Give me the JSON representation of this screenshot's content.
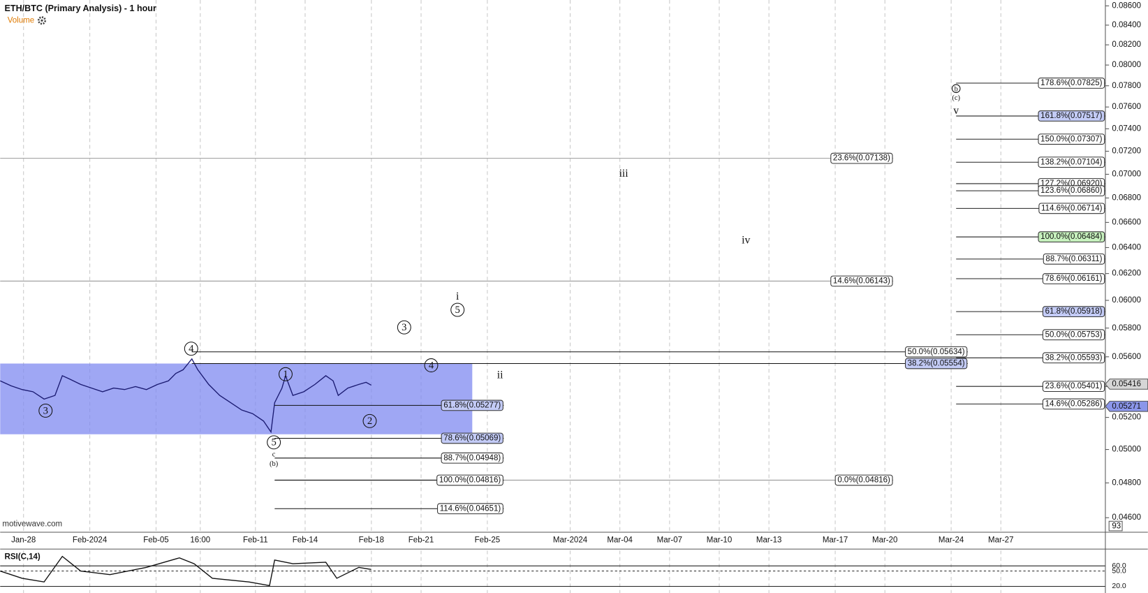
{
  "chart_data": [
    {
      "type": "line",
      "title": "ETH/BTC (Primary Analysis) - 1 hour",
      "subtitle": "Volume",
      "watermark": "motivewave.com",
      "log_scale": true,
      "grid": true,
      "xlim": [
        -1.41,
        65.31
      ],
      "xticks": [
        {
          "value": 0,
          "label": "Jan-28"
        },
        {
          "value": 4,
          "label": "Feb-2024"
        },
        {
          "value": 8,
          "label": "Feb-05"
        },
        {
          "value": 10.67,
          "label": "16:00"
        },
        {
          "value": 14,
          "label": "Feb-11"
        },
        {
          "value": 17,
          "label": "Feb-14"
        },
        {
          "value": 21,
          "label": "Feb-18"
        },
        {
          "value": 24,
          "label": "Feb-21"
        },
        {
          "value": 28,
          "label": "Feb-25"
        },
        {
          "value": 33,
          "label": "Mar-2024"
        },
        {
          "value": 36,
          "label": "Mar-04"
        },
        {
          "value": 39,
          "label": "Mar-07"
        },
        {
          "value": 42,
          "label": "Mar-10"
        },
        {
          "value": 45,
          "label": "Mar-13"
        },
        {
          "value": 49,
          "label": "Mar-17"
        },
        {
          "value": 52,
          "label": "Mar-20"
        },
        {
          "value": 56,
          "label": "Mar-24"
        },
        {
          "value": 59,
          "label": "Mar-27"
        }
      ],
      "ylim": [
        0.04519,
        0.08662
      ],
      "yticks": [
        {
          "value": 0.046,
          "label": "0.04600"
        },
        {
          "value": 0.048,
          "label": "0.04800"
        },
        {
          "value": 0.05,
          "label": "0.05000"
        },
        {
          "value": 0.052,
          "label": "0.05200"
        },
        {
          "value": 0.054,
          "label": "0.05400"
        },
        {
          "value": 0.056,
          "label": "0.05600"
        },
        {
          "value": 0.058,
          "label": "0.05800"
        },
        {
          "value": 0.06,
          "label": "0.06000"
        },
        {
          "value": 0.062,
          "label": "0.06200"
        },
        {
          "value": 0.064,
          "label": "0.06400"
        },
        {
          "value": 0.066,
          "label": "0.06600"
        },
        {
          "value": 0.068,
          "label": "0.06800"
        },
        {
          "value": 0.07,
          "label": "0.07000"
        },
        {
          "value": 0.072,
          "label": "0.07200"
        },
        {
          "value": 0.074,
          "label": "0.07400"
        },
        {
          "value": 0.076,
          "label": "0.07600"
        },
        {
          "value": 0.078,
          "label": "0.07800"
        },
        {
          "value": 0.08,
          "label": "0.08000"
        },
        {
          "value": 0.082,
          "label": "0.08200"
        },
        {
          "value": 0.084,
          "label": "0.08400"
        },
        {
          "value": 0.086,
          "label": "0.08600"
        }
      ],
      "color": "#1b1b72",
      "x": [
        -1.41,
        -0.75,
        -0.09,
        0.57,
        1.24,
        1.9,
        2.34,
        2.78,
        3.45,
        4.11,
        4.77,
        5.44,
        6.1,
        6.76,
        7.42,
        8.09,
        8.75,
        9.19,
        9.63,
        10.16,
        10.52,
        11.18,
        11.84,
        12.51,
        13.17,
        13.83,
        14.49,
        14.94,
        15.16,
        15.6,
        15.82,
        16.26,
        16.92,
        17.59,
        18.25,
        18.69,
        19.0,
        19.58,
        20.24,
        20.68,
        20.99
      ],
      "values": [
        0.05438,
        0.05405,
        0.0538,
        0.05366,
        0.05318,
        0.05342,
        0.05472,
        0.0545,
        0.05414,
        0.0539,
        0.05366,
        0.0539,
        0.0538,
        0.054,
        0.0538,
        0.05414,
        0.05438,
        0.05487,
        0.05512,
        0.05586,
        0.05512,
        0.05414,
        0.05342,
        0.05294,
        0.05247,
        0.05224,
        0.05177,
        0.05108,
        0.05294,
        0.0539,
        0.05472,
        0.05342,
        0.05366,
        0.05414,
        0.05472,
        0.05438,
        0.05342,
        0.0539,
        0.05414,
        0.05428,
        0.05409
      ],
      "box": {
        "x": [
          -1.41,
          27.09
        ],
        "y": [
          0.05094,
          0.05554
        ],
        "color": "#7f89f0"
      },
      "fib_groups": [
        {
          "from": 56.3,
          "to": 65.3,
          "color": "#222",
          "levels": [
            {
              "value": 0.07825,
              "label": "178.6%(0.07825)"
            },
            {
              "value": 0.07517,
              "label": "161.8%(0.07517)",
              "bg": "#c3cbf6"
            },
            {
              "value": 0.07307,
              "label": "150.0%(0.07307)"
            },
            {
              "value": 0.07104,
              "label": "138.2%(0.07104)"
            },
            {
              "value": 0.0692,
              "label": "127.2%(0.06920)"
            },
            {
              "value": 0.0686,
              "label": "123.6%(0.06860)"
            },
            {
              "value": 0.06714,
              "label": "114.6%(0.06714)"
            },
            {
              "value": 0.06484,
              "label": "100.0%(0.06484)",
              "bg": "#c6f0bd"
            },
            {
              "value": 0.06311,
              "label": "88.7%(0.06311)"
            },
            {
              "value": 0.06161,
              "label": "78.6%(0.06161)"
            },
            {
              "value": 0.05918,
              "label": "61.8%(0.05918)",
              "bg": "#c3cbf6"
            },
            {
              "value": 0.05753,
              "label": "50.0%(0.05753)"
            },
            {
              "value": 0.05593,
              "label": "38.2%(0.05593)"
            },
            {
              "value": 0.05401,
              "label": "23.6%(0.05401)"
            },
            {
              "value": 0.05286,
              "label": "14.6%(0.05286)"
            }
          ]
        },
        {
          "from": -1.41,
          "to": 52.5,
          "color": "#9a9a9a",
          "levels": [
            {
              "value": 0.07138,
              "label": "23.6%(0.07138)"
            },
            {
              "value": 0.06143,
              "label": "14.6%(0.06143)"
            }
          ]
        },
        {
          "from": 15.16,
          "to": 52.5,
          "color": "#9a9a9a",
          "levels": [
            {
              "value": 0.04816,
              "label": "0.0%(0.04816)"
            }
          ]
        },
        {
          "from": 10.16,
          "to": 57.0,
          "color": "#111",
          "levels": [
            {
              "value": 0.05634,
              "label": "50.0%(0.05634)"
            },
            {
              "value": 0.05554,
              "label": "38.2%(0.05554)",
              "bg": "#c3cbf6"
            }
          ]
        },
        {
          "from": 15.16,
          "to": 28.99,
          "color": "#111",
          "levels": [
            {
              "value": 0.05277,
              "label": "61.8%(0.05277)",
              "bg": "#c3cbf6"
            },
            {
              "value": 0.05069,
              "label": "78.6%(0.05069)",
              "bg": "#c3cbf6"
            },
            {
              "value": 0.04948,
              "label": "88.7%(0.04948)"
            },
            {
              "value": 0.04816,
              "label": "100.0%(0.04816)"
            },
            {
              "value": 0.04651,
              "label": "114.6%(0.04651)"
            }
          ]
        }
      ],
      "annotations": [
        {
          "text": "3",
          "circled": true,
          "x": 1.33,
          "y": 0.05243
        },
        {
          "text": "4",
          "circled": true,
          "x": 10.12,
          "y": 0.05656
        },
        {
          "text": "1",
          "circled": true,
          "x": 15.82,
          "y": 0.05482
        },
        {
          "text": "5",
          "circled": true,
          "x": 15.11,
          "y": 0.05044
        },
        {
          "text": "c",
          "circled": false,
          "x": 15.11,
          "y": 0.04973
        },
        {
          "text": "(b)",
          "circled": false,
          "x": 15.11,
          "y": 0.04915
        },
        {
          "text": "2",
          "circled": true,
          "x": 20.9,
          "y": 0.05177
        },
        {
          "text": "3",
          "circled": true,
          "x": 22.98,
          "y": 0.05805
        },
        {
          "text": "4",
          "circled": true,
          "x": 24.61,
          "y": 0.05542
        },
        {
          "text": "i",
          "circled": false,
          "x": 26.2,
          "y": 0.06028
        },
        {
          "text": "5",
          "circled": true,
          "x": 26.2,
          "y": 0.05931
        },
        {
          "text": "ii",
          "circled": false,
          "x": 28.77,
          "y": 0.05477
        },
        {
          "text": "iii",
          "circled": false,
          "x": 36.23,
          "y": 0.07006
        },
        {
          "text": "iv",
          "circled": false,
          "x": 43.61,
          "y": 0.06458
        },
        {
          "text": "v",
          "circled": false,
          "x": 56.3,
          "y": 0.07566
        },
        {
          "text": "(c)",
          "circled": false,
          "x": 56.3,
          "y": 0.07689
        },
        {
          "text": "b",
          "circled": true,
          "x": 56.3,
          "y": 0.07773
        }
      ],
      "price_tags": [
        {
          "value": 0.05416,
          "color": "#d6d6d6"
        },
        {
          "value": 0.05271,
          "color": "#8b96ea"
        }
      ],
      "volume_ticks": [
        93
      ]
    },
    {
      "type": "line",
      "title": "RSI(C,14)",
      "color": "#111",
      "x": [
        -1.41,
        -0.09,
        1.24,
        2.34,
        3.45,
        5.22,
        7.42,
        9.41,
        10.3,
        11.4,
        13.61,
        14.85,
        15.16,
        16.26,
        18.25,
        18.91,
        20.24,
        20.99
      ],
      "values": [
        50,
        35.7,
        28.6,
        78.6,
        50,
        42.9,
        57.1,
        75.7,
        64.3,
        35.7,
        28.6,
        21.4,
        71.4,
        64.3,
        67.1,
        35.7,
        57.1,
        52.9
      ],
      "ylim": [
        7,
        90
      ],
      "yticks": [
        {
          "value": 60,
          "label": "60.0"
        },
        {
          "value": 50,
          "label": "50.0"
        },
        {
          "value": 20,
          "label": "20.0"
        }
      ]
    }
  ]
}
